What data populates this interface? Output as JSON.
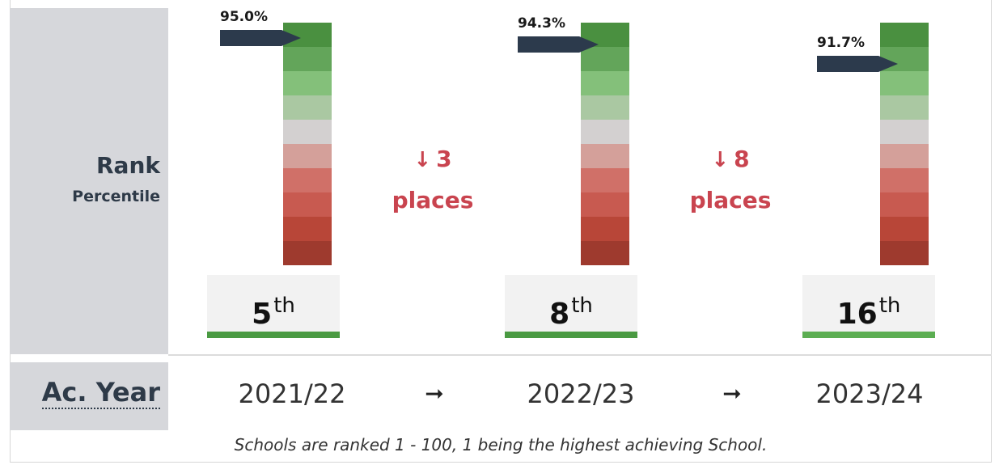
{
  "row_labels": {
    "rank": "Rank",
    "percentile": "Percentile",
    "year": "Ac. Year"
  },
  "columns": [
    {
      "percentile": "95.0%",
      "rank": "5",
      "suffix": "th",
      "year": "2021/22"
    },
    {
      "percentile": "94.3%",
      "rank": "8",
      "suffix": "th",
      "year": "2022/23"
    },
    {
      "percentile": "91.7%",
      "rank": "16",
      "suffix": "th",
      "year": "2023/24"
    }
  ],
  "changes": [
    {
      "amount": "3",
      "unit": "places"
    },
    {
      "amount": "8",
      "unit": "places"
    }
  ],
  "footnote": "Schools are ranked 1 - 100, 1 being the highest achieving School."
}
